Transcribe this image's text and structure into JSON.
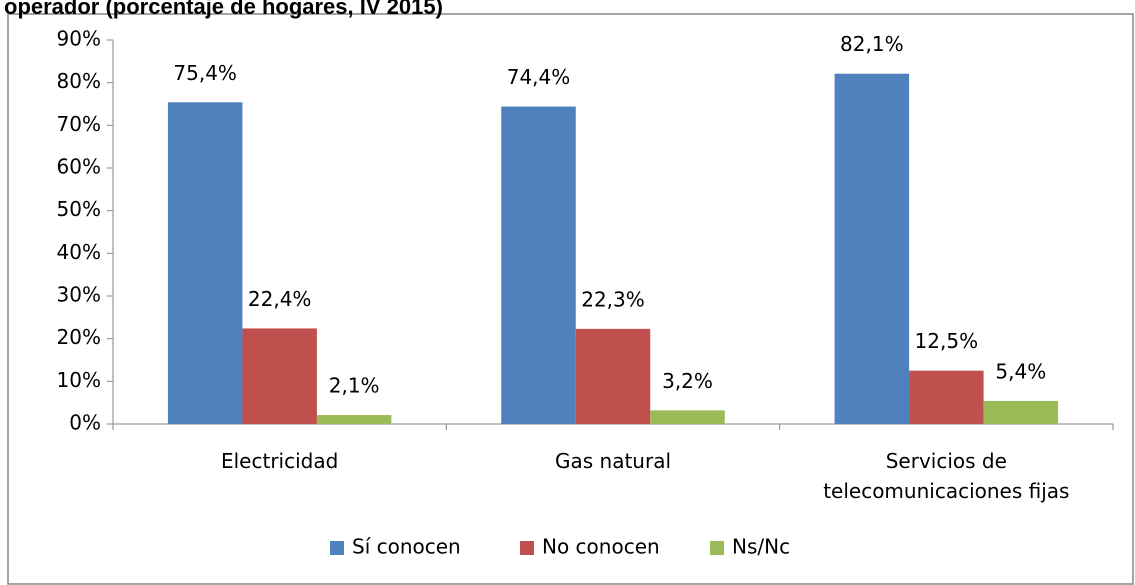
{
  "chart_data": {
    "type": "bar",
    "title": "operador (porcentaje de hogares, IV 2015)",
    "categories": [
      "Electricidad",
      "Gas natural",
      "Servicios de telecomunicaciones fijas"
    ],
    "series": [
      {
        "name": "Sí conocen",
        "color": "#4f81bd",
        "values": [
          75.4,
          74.4,
          82.1
        ],
        "value_labels": [
          "75,4%",
          "74,4%",
          "82,1%"
        ]
      },
      {
        "name": "No conocen",
        "color": "#c0504d",
        "values": [
          22.4,
          22.3,
          12.5
        ],
        "value_labels": [
          "22,4%",
          "22,3%",
          "12,5%"
        ]
      },
      {
        "name": "Ns/Nc",
        "color": "#9bbb59",
        "values": [
          2.1,
          3.2,
          5.4
        ],
        "value_labels": [
          "2,1%",
          "3,2%",
          "5,4%"
        ]
      }
    ],
    "ylim": [
      0,
      90
    ],
    "yticks": [
      {
        "value": 0,
        "label": "0%"
      },
      {
        "value": 10,
        "label": "10%"
      },
      {
        "value": 20,
        "label": "20%"
      },
      {
        "value": 30,
        "label": "30%"
      },
      {
        "value": 40,
        "label": "40%"
      },
      {
        "value": 50,
        "label": "50%"
      },
      {
        "value": 60,
        "label": "60%"
      },
      {
        "value": 70,
        "label": "70%"
      },
      {
        "value": 80,
        "label": "80%"
      },
      {
        "value": 90,
        "label": "90%"
      }
    ],
    "grid": false,
    "legend": "bottom"
  }
}
